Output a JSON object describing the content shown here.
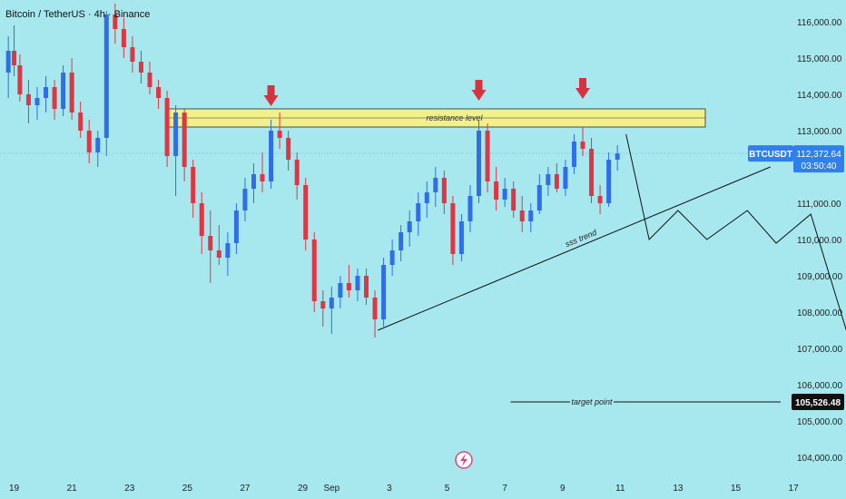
{
  "header": {
    "title": "Bitcoin / TetherUS · 4h · Binance"
  },
  "colors": {
    "background": "#a6e8ee",
    "bull": "#2f6ee8",
    "bear": "#e03545",
    "zone": "#f2f08a",
    "arrow": "#d63341",
    "tag": "#2f80ed",
    "target_tag": "#111111"
  },
  "chart_data": {
    "type": "candlestick",
    "y_axis": {
      "range": [
        103600,
        116600
      ],
      "ticks": [
        104000,
        105000,
        106000,
        107000,
        108000,
        109000,
        110000,
        111000,
        112000,
        113000,
        114000,
        115000,
        116000
      ],
      "tick_labels": [
        "104,000.00",
        "105,000.00",
        "106,000.00",
        "107,000.00",
        "108,000.00",
        "109,000.00",
        "110,000.00",
        "111,000.00",
        "112,000.00",
        "113,000.00",
        "114,000.00",
        "115,000.00",
        "116,000.00"
      ]
    },
    "x_axis": {
      "range": [
        18.7,
        26.3
      ],
      "tick_labels": [
        "19",
        "21",
        "23",
        "25",
        "27",
        "29",
        "Sep",
        "3",
        "5",
        "7",
        "9",
        "11",
        "13",
        "15",
        "17",
        "19",
        "21",
        "23",
        "25"
      ],
      "tick_positions": [
        19,
        21,
        23,
        25,
        27,
        29,
        32,
        34,
        36,
        38,
        40,
        42,
        44,
        46,
        48,
        50,
        52,
        54,
        56
      ]
    },
    "symbol": "BTCUSDT",
    "last_price": 112372.64,
    "last_price_label": "112,372.64",
    "countdown": "03:50:40",
    "candles": [
      {
        "t": 18.8,
        "o": 114600,
        "h": 115600,
        "l": 113900,
        "c": 115200
      },
      {
        "t": 19.0,
        "o": 115200,
        "h": 115900,
        "l": 114500,
        "c": 114800
      },
      {
        "t": 19.2,
        "o": 114800,
        "h": 115100,
        "l": 113800,
        "c": 114000
      },
      {
        "t": 19.5,
        "o": 114000,
        "h": 114400,
        "l": 113200,
        "c": 113700
      },
      {
        "t": 19.8,
        "o": 113700,
        "h": 114200,
        "l": 113300,
        "c": 113900
      },
      {
        "t": 20.1,
        "o": 113900,
        "h": 114500,
        "l": 113500,
        "c": 114200
      },
      {
        "t": 20.4,
        "o": 114200,
        "h": 114400,
        "l": 113300,
        "c": 113600
      },
      {
        "t": 20.7,
        "o": 113600,
        "h": 114800,
        "l": 113400,
        "c": 114600
      },
      {
        "t": 21.0,
        "o": 114600,
        "h": 115000,
        "l": 113300,
        "c": 113500
      },
      {
        "t": 21.3,
        "o": 113500,
        "h": 113800,
        "l": 112800,
        "c": 113000
      },
      {
        "t": 21.6,
        "o": 113000,
        "h": 113300,
        "l": 112100,
        "c": 112400
      },
      {
        "t": 21.9,
        "o": 112400,
        "h": 113000,
        "l": 112000,
        "c": 112800
      },
      {
        "t": 22.2,
        "o": 112800,
        "h": 116300,
        "l": 112300,
        "c": 116200
      },
      {
        "t": 22.5,
        "o": 116200,
        "h": 116500,
        "l": 115400,
        "c": 115800
      },
      {
        "t": 22.8,
        "o": 115800,
        "h": 116100,
        "l": 115000,
        "c": 115300
      },
      {
        "t": 23.1,
        "o": 115300,
        "h": 115600,
        "l": 114600,
        "c": 114900
      },
      {
        "t": 23.4,
        "o": 114900,
        "h": 115200,
        "l": 114300,
        "c": 114600
      },
      {
        "t": 23.7,
        "o": 114600,
        "h": 114900,
        "l": 114000,
        "c": 114200
      },
      {
        "t": 24.0,
        "o": 114200,
        "h": 114400,
        "l": 113600,
        "c": 113900
      },
      {
        "t": 24.3,
        "o": 113900,
        "h": 114100,
        "l": 112000,
        "c": 112300
      },
      {
        "t": 24.6,
        "o": 112300,
        "h": 113700,
        "l": 111200,
        "c": 113500
      },
      {
        "t": 24.9,
        "o": 113500,
        "h": 113600,
        "l": 111600,
        "c": 112000
      },
      {
        "t": 25.2,
        "o": 112000,
        "h": 112200,
        "l": 110600,
        "c": 111000
      },
      {
        "t": 25.5,
        "o": 111000,
        "h": 111300,
        "l": 109600,
        "c": 110100
      },
      {
        "t": 25.8,
        "o": 110100,
        "h": 110800,
        "l": 108800,
        "c": 109700
      },
      {
        "t": 26.1,
        "o": 109700,
        "h": 110400,
        "l": 109300,
        "c": 109500
      },
      {
        "t": 26.4,
        "o": 109500,
        "h": 110200,
        "l": 109000,
        "c": 109900
      },
      {
        "t": 26.7,
        "o": 109900,
        "h": 111000,
        "l": 109600,
        "c": 110800
      },
      {
        "t": 27.0,
        "o": 110800,
        "h": 111700,
        "l": 110500,
        "c": 111400
      },
      {
        "t": 27.3,
        "o": 111400,
        "h": 112100,
        "l": 111000,
        "c": 111800
      },
      {
        "t": 27.6,
        "o": 111800,
        "h": 112400,
        "l": 111300,
        "c": 111600
      },
      {
        "t": 27.9,
        "o": 111600,
        "h": 113300,
        "l": 111400,
        "c": 113000
      },
      {
        "t": 28.2,
        "o": 113000,
        "h": 113500,
        "l": 112500,
        "c": 112800
      },
      {
        "t": 28.5,
        "o": 112800,
        "h": 113000,
        "l": 111900,
        "c": 112200
      },
      {
        "t": 28.8,
        "o": 112200,
        "h": 112400,
        "l": 111100,
        "c": 111500
      },
      {
        "t": 29.1,
        "o": 111500,
        "h": 111700,
        "l": 109700,
        "c": 110000
      },
      {
        "t": 29.4,
        "o": 110000,
        "h": 110200,
        "l": 108000,
        "c": 108300
      },
      {
        "t": 29.7,
        "o": 108300,
        "h": 108600,
        "l": 107600,
        "c": 108100
      },
      {
        "t": 30.0,
        "o": 108100,
        "h": 108700,
        "l": 107400,
        "c": 108400
      },
      {
        "t": 30.3,
        "o": 108400,
        "h": 109000,
        "l": 108100,
        "c": 108800
      },
      {
        "t": 30.6,
        "o": 108800,
        "h": 109300,
        "l": 108400,
        "c": 108600
      },
      {
        "t": 30.9,
        "o": 108600,
        "h": 109200,
        "l": 108300,
        "c": 109000
      },
      {
        "t": 31.2,
        "o": 109000,
        "h": 109200,
        "l": 108200,
        "c": 108400
      },
      {
        "t": 31.5,
        "o": 108400,
        "h": 108600,
        "l": 107300,
        "c": 107800
      },
      {
        "t": 31.8,
        "o": 107800,
        "h": 109500,
        "l": 107600,
        "c": 109300
      },
      {
        "t": 32.1,
        "o": 109300,
        "h": 110000,
        "l": 109000,
        "c": 109700
      },
      {
        "t": 32.4,
        "o": 109700,
        "h": 110400,
        "l": 109400,
        "c": 110200
      },
      {
        "t": 32.7,
        "o": 110200,
        "h": 110800,
        "l": 109800,
        "c": 110500
      },
      {
        "t": 33.0,
        "o": 110500,
        "h": 111300,
        "l": 110100,
        "c": 111000
      },
      {
        "t": 33.3,
        "o": 111000,
        "h": 111600,
        "l": 110600,
        "c": 111300
      },
      {
        "t": 33.6,
        "o": 111300,
        "h": 112000,
        "l": 110900,
        "c": 111700
      },
      {
        "t": 33.9,
        "o": 111700,
        "h": 111900,
        "l": 110700,
        "c": 111000
      },
      {
        "t": 34.2,
        "o": 111000,
        "h": 111200,
        "l": 109300,
        "c": 109600
      },
      {
        "t": 34.5,
        "o": 109600,
        "h": 110700,
        "l": 109400,
        "c": 110500
      },
      {
        "t": 34.8,
        "o": 110500,
        "h": 111500,
        "l": 110200,
        "c": 111200
      },
      {
        "t": 35.1,
        "o": 111200,
        "h": 113300,
        "l": 111000,
        "c": 113000
      },
      {
        "t": 35.4,
        "o": 113000,
        "h": 113200,
        "l": 111300,
        "c": 111600
      },
      {
        "t": 35.7,
        "o": 111600,
        "h": 112000,
        "l": 110800,
        "c": 111100
      },
      {
        "t": 36.0,
        "o": 111100,
        "h": 111700,
        "l": 110900,
        "c": 111400
      },
      {
        "t": 36.3,
        "o": 111400,
        "h": 111600,
        "l": 110600,
        "c": 110800
      },
      {
        "t": 36.6,
        "o": 110800,
        "h": 111200,
        "l": 110200,
        "c": 110500
      },
      {
        "t": 36.9,
        "o": 110500,
        "h": 111000,
        "l": 110200,
        "c": 110800
      },
      {
        "t": 37.2,
        "o": 110800,
        "h": 111800,
        "l": 110700,
        "c": 111500
      },
      {
        "t": 37.5,
        "o": 111500,
        "h": 112000,
        "l": 111200,
        "c": 111800
      },
      {
        "t": 37.8,
        "o": 111800,
        "h": 112100,
        "l": 111300,
        "c": 111400
      },
      {
        "t": 38.1,
        "o": 111400,
        "h": 112200,
        "l": 111200,
        "c": 112000
      },
      {
        "t": 38.4,
        "o": 112000,
        "h": 112900,
        "l": 111800,
        "c": 112700
      },
      {
        "t": 38.7,
        "o": 112700,
        "h": 113100,
        "l": 112300,
        "c": 112500
      },
      {
        "t": 39.0,
        "o": 112500,
        "h": 112800,
        "l": 111000,
        "c": 111200
      },
      {
        "t": 39.3,
        "o": 111200,
        "h": 111500,
        "l": 110700,
        "c": 111000
      },
      {
        "t": 39.6,
        "o": 111000,
        "h": 112400,
        "l": 110900,
        "c": 112200
      },
      {
        "t": 39.9,
        "o": 112200,
        "h": 112600,
        "l": 111900,
        "c": 112372
      }
    ],
    "zones": [
      {
        "y1": 113100,
        "y2": 113600,
        "x1": 24.3,
        "x2": 54.3,
        "label": "resistance level"
      }
    ],
    "markers": [
      {
        "t": 27.9,
        "y": 113600
      },
      {
        "t": 35.1,
        "y": 113750
      },
      {
        "t": 38.7,
        "y": 113800
      }
    ],
    "trendline": {
      "label": "sss trend",
      "points": [
        [
          31.6,
          107500
        ],
        [
          45.2,
          112000
        ]
      ]
    },
    "projection": [
      [
        40.2,
        112900
      ],
      [
        41.0,
        110000
      ],
      [
        42.0,
        110800
      ],
      [
        43.0,
        110000
      ],
      [
        44.4,
        110800
      ],
      [
        45.4,
        109900
      ],
      [
        46.6,
        110700
      ],
      [
        48.6,
        105500
      ]
    ],
    "target": {
      "label": "target point",
      "value": 105526.48,
      "value_label": "105,526.48",
      "x1": 36.2,
      "x2": 60
    }
  }
}
